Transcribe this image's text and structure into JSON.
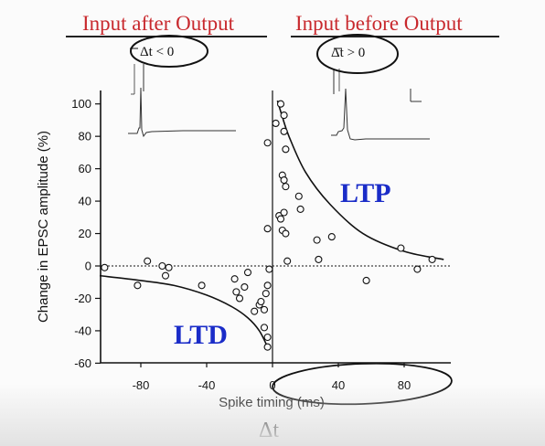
{
  "annotations": {
    "header_left": "Input after Output",
    "header_right": "Input before Output",
    "dt_neg": "Δt < 0",
    "dt_pos": "Δt > 0",
    "delta_t": "Δt",
    "ltd": "LTD",
    "ltp": "LTP",
    "header_color": "#c8282d",
    "label_color": "#1a2cc8"
  },
  "chart_data": {
    "type": "scatter",
    "title": "",
    "xlabel": "Spike timing (ms)",
    "ylabel": "Change in EPSC amplitude (%)",
    "xlim": [
      -105,
      105
    ],
    "ylim": [
      -60,
      105
    ],
    "xticks": [
      -80,
      -40,
      0,
      40,
      80
    ],
    "yticks": [
      -60,
      -40,
      -20,
      0,
      20,
      40,
      60,
      80,
      100
    ],
    "grid": false,
    "points": [
      {
        "x": -102,
        "y": -1
      },
      {
        "x": -82,
        "y": -12
      },
      {
        "x": -76,
        "y": 3
      },
      {
        "x": -67,
        "y": 0
      },
      {
        "x": -65,
        "y": -6
      },
      {
        "x": -63,
        "y": -1
      },
      {
        "x": -43,
        "y": -12
      },
      {
        "x": -23,
        "y": -8
      },
      {
        "x": -22,
        "y": -16
      },
      {
        "x": -20,
        "y": -20
      },
      {
        "x": -17,
        "y": -13
      },
      {
        "x": -15,
        "y": -4
      },
      {
        "x": -11,
        "y": -28
      },
      {
        "x": -8,
        "y": -24
      },
      {
        "x": -7,
        "y": -22
      },
      {
        "x": -5,
        "y": -27
      },
      {
        "x": -4,
        "y": -17
      },
      {
        "x": -5,
        "y": -38
      },
      {
        "x": -3,
        "y": -44
      },
      {
        "x": -3,
        "y": -12
      },
      {
        "x": -2,
        "y": -2
      },
      {
        "x": -3,
        "y": -50
      },
      {
        "x": -3,
        "y": 76
      },
      {
        "x": -3,
        "y": 23
      },
      {
        "x": 2,
        "y": 88
      },
      {
        "x": 5,
        "y": 100
      },
      {
        "x": 7,
        "y": 93
      },
      {
        "x": 7,
        "y": 83
      },
      {
        "x": 8,
        "y": 72
      },
      {
        "x": 6,
        "y": 56
      },
      {
        "x": 7,
        "y": 53
      },
      {
        "x": 8,
        "y": 49
      },
      {
        "x": 4,
        "y": 31
      },
      {
        "x": 5,
        "y": 29
      },
      {
        "x": 7,
        "y": 33
      },
      {
        "x": 6,
        "y": 22
      },
      {
        "x": 8,
        "y": 20
      },
      {
        "x": 9,
        "y": 3
      },
      {
        "x": 16,
        "y": 43
      },
      {
        "x": 17,
        "y": 35
      },
      {
        "x": 27,
        "y": 16
      },
      {
        "x": 28,
        "y": 4
      },
      {
        "x": 36,
        "y": 18
      },
      {
        "x": 57,
        "y": -9
      },
      {
        "x": 78,
        "y": 11
      },
      {
        "x": 88,
        "y": -2
      },
      {
        "x": 97,
        "y": 4
      }
    ],
    "fits": [
      {
        "name": "LTD",
        "x": [
          -105,
          -80,
          -60,
          -40,
          -25,
          -15,
          -8,
          -3
        ],
        "y": [
          -6,
          -9,
          -12,
          -18,
          -25,
          -32,
          -40,
          -50
        ]
      },
      {
        "name": "LTP",
        "x": [
          3,
          6,
          10,
          20,
          35,
          55,
          80,
          104
        ],
        "y": [
          102,
          92,
          80,
          58,
          38,
          20,
          9,
          4
        ]
      }
    ]
  }
}
